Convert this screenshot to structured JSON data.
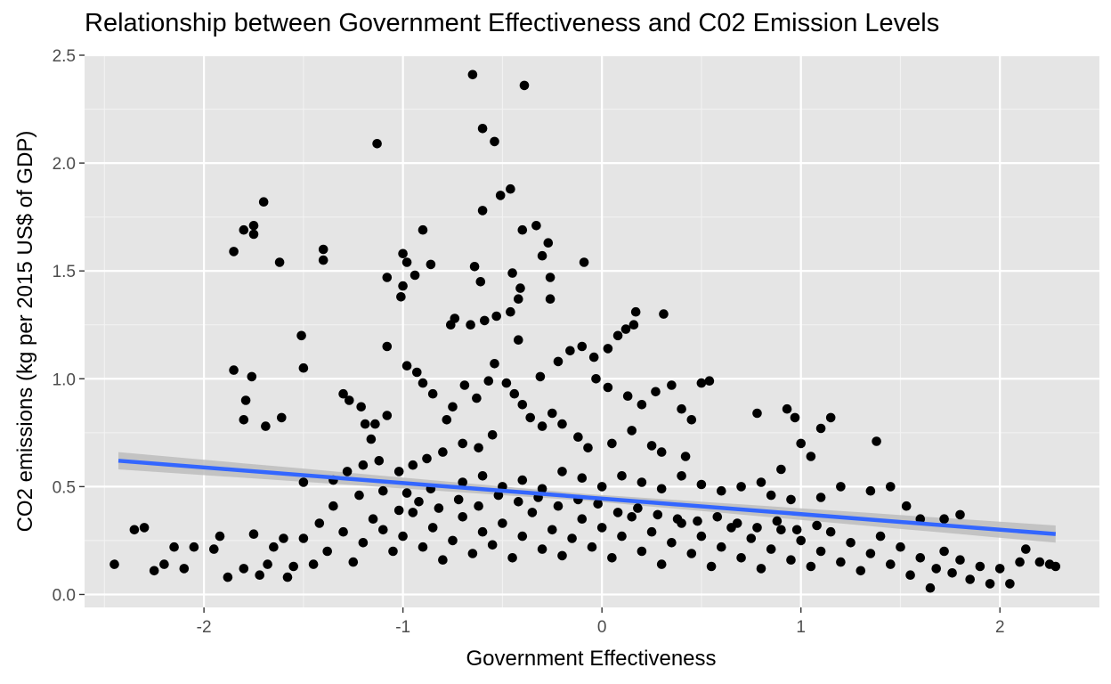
{
  "chart_data": {
    "type": "scatter",
    "title": "Relationship between Government Effectiveness and C02 Emission Levels",
    "xlabel": "Government Effectiveness",
    "ylabel": "CO2 emissions (kg per 2015 US$ of GDP)",
    "xlim": [
      -2.6,
      2.5
    ],
    "ylim": [
      -0.06,
      2.5
    ],
    "x_ticks": [
      -2,
      -1,
      0,
      1,
      2
    ],
    "x_tick_labels": [
      "-2",
      "-1",
      "0",
      "1",
      "2"
    ],
    "y_ticks": [
      0.0,
      0.5,
      1.0,
      1.5,
      2.0,
      2.5
    ],
    "y_tick_labels": [
      "0.0",
      "0.5",
      "1.0",
      "1.5",
      "2.0",
      "2.5"
    ],
    "grid": true,
    "panel_background": "#e5e5e5",
    "point_color": "#000000",
    "series": [
      {
        "points": [
          [
            -0.65,
            2.41
          ],
          [
            -0.39,
            2.36
          ],
          [
            -1.13,
            2.09
          ],
          [
            -0.6,
            2.16
          ],
          [
            -0.54,
            2.1
          ],
          [
            -0.46,
            1.88
          ],
          [
            -0.51,
            1.85
          ],
          [
            -0.6,
            1.78
          ],
          [
            -0.33,
            1.71
          ],
          [
            -0.4,
            1.69
          ],
          [
            -0.27,
            1.63
          ],
          [
            -0.3,
            1.57
          ],
          [
            -0.09,
            1.54
          ],
          [
            -0.26,
            1.47
          ],
          [
            -0.26,
            1.37
          ],
          [
            -0.45,
            1.49
          ],
          [
            -0.41,
            1.42
          ],
          [
            -0.64,
            1.52
          ],
          [
            -0.61,
            1.45
          ],
          [
            -0.42,
            1.37
          ],
          [
            -1.7,
            1.82
          ],
          [
            -1.75,
            1.71
          ],
          [
            -1.8,
            1.69
          ],
          [
            -1.75,
            1.67
          ],
          [
            -1.85,
            1.59
          ],
          [
            -1.62,
            1.54
          ],
          [
            -1.4,
            1.6
          ],
          [
            -1.4,
            1.55
          ],
          [
            -1.0,
            1.58
          ],
          [
            -0.98,
            1.54
          ],
          [
            -1.08,
            1.47
          ],
          [
            -0.9,
            1.69
          ],
          [
            -0.86,
            1.53
          ],
          [
            -0.94,
            1.48
          ],
          [
            -1.01,
            1.38
          ],
          [
            -1.0,
            1.43
          ],
          [
            -0.74,
            1.28
          ],
          [
            -0.76,
            1.25
          ],
          [
            -0.66,
            1.25
          ],
          [
            -0.59,
            1.27
          ],
          [
            -0.53,
            1.29
          ],
          [
            -0.46,
            1.31
          ],
          [
            -0.42,
            1.18
          ],
          [
            -1.51,
            1.2
          ],
          [
            -1.5,
            1.05
          ],
          [
            -1.08,
            1.15
          ],
          [
            -1.85,
            1.04
          ],
          [
            -1.76,
            1.01
          ],
          [
            -1.79,
            0.9
          ],
          [
            -1.8,
            0.81
          ],
          [
            -1.69,
            0.78
          ],
          [
            -1.61,
            0.82
          ],
          [
            -1.3,
            0.93
          ],
          [
            -1.27,
            0.9
          ],
          [
            -1.21,
            0.87
          ],
          [
            -1.19,
            0.79
          ],
          [
            -1.14,
            0.79
          ],
          [
            -1.08,
            0.83
          ],
          [
            -1.16,
            0.72
          ],
          [
            -1.12,
            0.62
          ],
          [
            -0.98,
            1.06
          ],
          [
            -0.93,
            1.03
          ],
          [
            -0.9,
            0.98
          ],
          [
            -0.85,
            0.93
          ],
          [
            -0.75,
            0.87
          ],
          [
            -0.78,
            0.81
          ],
          [
            -0.69,
            0.97
          ],
          [
            -0.63,
            0.91
          ],
          [
            -0.57,
            0.99
          ],
          [
            -0.54,
            1.07
          ],
          [
            -0.48,
            0.98
          ],
          [
            -0.44,
            0.93
          ],
          [
            -0.4,
            0.88
          ],
          [
            -0.36,
            0.82
          ],
          [
            -0.31,
            1.01
          ],
          [
            -0.22,
            1.08
          ],
          [
            -0.16,
            1.13
          ],
          [
            -0.1,
            1.15
          ],
          [
            -0.04,
            1.1
          ],
          [
            0.03,
            1.14
          ],
          [
            0.08,
            1.2
          ],
          [
            0.12,
            1.23
          ],
          [
            0.16,
            1.25
          ],
          [
            0.17,
            1.31
          ],
          [
            0.31,
            1.3
          ],
          [
            -0.03,
            1.0
          ],
          [
            0.03,
            0.96
          ],
          [
            0.13,
            0.92
          ],
          [
            0.2,
            0.88
          ],
          [
            0.27,
            0.94
          ],
          [
            0.35,
            0.97
          ],
          [
            0.4,
            0.86
          ],
          [
            0.45,
            0.81
          ],
          [
            0.5,
            0.98
          ],
          [
            0.54,
            0.99
          ],
          [
            0.78,
            0.84
          ],
          [
            0.93,
            0.86
          ],
          [
            0.97,
            0.82
          ],
          [
            1.1,
            0.77
          ],
          [
            1.15,
            0.82
          ],
          [
            1.38,
            0.71
          ],
          [
            1.0,
            0.7
          ],
          [
            1.05,
            0.64
          ],
          [
            0.9,
            0.58
          ],
          [
            0.8,
            0.52
          ],
          [
            -0.25,
            0.84
          ],
          [
            -0.3,
            0.78
          ],
          [
            -0.2,
            0.79
          ],
          [
            -0.12,
            0.73
          ],
          [
            -0.07,
            0.68
          ],
          [
            0.05,
            0.7
          ],
          [
            0.15,
            0.76
          ],
          [
            0.25,
            0.69
          ],
          [
            0.3,
            0.66
          ],
          [
            0.42,
            0.64
          ],
          [
            -0.55,
            0.74
          ],
          [
            -0.62,
            0.68
          ],
          [
            -0.7,
            0.7
          ],
          [
            -0.8,
            0.66
          ],
          [
            -0.88,
            0.63
          ],
          [
            -0.95,
            0.6
          ],
          [
            -1.02,
            0.57
          ],
          [
            -1.2,
            0.6
          ],
          [
            -1.28,
            0.57
          ],
          [
            -1.35,
            0.53
          ],
          [
            -1.5,
            0.52
          ],
          [
            -1.22,
            0.46
          ],
          [
            -1.1,
            0.48
          ],
          [
            -0.98,
            0.47
          ],
          [
            -0.86,
            0.49
          ],
          [
            -0.7,
            0.52
          ],
          [
            -0.6,
            0.55
          ],
          [
            -0.5,
            0.5
          ],
          [
            -0.4,
            0.53
          ],
          [
            -0.3,
            0.49
          ],
          [
            -0.2,
            0.57
          ],
          [
            -0.1,
            0.54
          ],
          [
            0.0,
            0.5
          ],
          [
            0.1,
            0.55
          ],
          [
            0.2,
            0.52
          ],
          [
            0.3,
            0.49
          ],
          [
            0.4,
            0.55
          ],
          [
            0.5,
            0.51
          ],
          [
            0.6,
            0.48
          ],
          [
            0.7,
            0.5
          ],
          [
            0.85,
            0.46
          ],
          [
            0.95,
            0.44
          ],
          [
            1.1,
            0.45
          ],
          [
            1.2,
            0.5
          ],
          [
            1.35,
            0.48
          ],
          [
            1.45,
            0.5
          ],
          [
            1.53,
            0.41
          ],
          [
            1.6,
            0.35
          ],
          [
            1.72,
            0.35
          ],
          [
            1.8,
            0.37
          ],
          [
            -2.45,
            0.14
          ],
          [
            -2.35,
            0.3
          ],
          [
            -2.3,
            0.31
          ],
          [
            -2.25,
            0.11
          ],
          [
            -2.2,
            0.14
          ],
          [
            -2.15,
            0.22
          ],
          [
            -2.1,
            0.12
          ],
          [
            -2.05,
            0.22
          ],
          [
            -1.95,
            0.21
          ],
          [
            -1.92,
            0.27
          ],
          [
            -1.88,
            0.08
          ],
          [
            -1.8,
            0.12
          ],
          [
            -1.75,
            0.28
          ],
          [
            -1.72,
            0.09
          ],
          [
            -1.68,
            0.14
          ],
          [
            -1.65,
            0.22
          ],
          [
            -1.6,
            0.26
          ],
          [
            -1.58,
            0.08
          ],
          [
            -1.55,
            0.13
          ],
          [
            -1.5,
            0.26
          ],
          [
            -1.45,
            0.14
          ],
          [
            -1.42,
            0.33
          ],
          [
            -1.38,
            0.2
          ],
          [
            -1.35,
            0.41
          ],
          [
            -1.3,
            0.29
          ],
          [
            -1.25,
            0.15
          ],
          [
            -1.2,
            0.24
          ],
          [
            -1.15,
            0.35
          ],
          [
            -1.1,
            0.3
          ],
          [
            -1.05,
            0.2
          ],
          [
            -1.0,
            0.27
          ],
          [
            -0.95,
            0.38
          ],
          [
            -0.9,
            0.22
          ],
          [
            -0.85,
            0.31
          ],
          [
            -0.8,
            0.16
          ],
          [
            -0.75,
            0.25
          ],
          [
            -0.7,
            0.36
          ],
          [
            -0.65,
            0.19
          ],
          [
            -0.6,
            0.29
          ],
          [
            -0.55,
            0.23
          ],
          [
            -0.5,
            0.33
          ],
          [
            -0.45,
            0.17
          ],
          [
            -0.4,
            0.27
          ],
          [
            -0.35,
            0.38
          ],
          [
            -0.3,
            0.21
          ],
          [
            -0.25,
            0.3
          ],
          [
            -0.2,
            0.18
          ],
          [
            -0.15,
            0.26
          ],
          [
            -0.1,
            0.35
          ],
          [
            -0.05,
            0.22
          ],
          [
            0.0,
            0.31
          ],
          [
            0.05,
            0.17
          ],
          [
            0.1,
            0.27
          ],
          [
            0.15,
            0.36
          ],
          [
            0.2,
            0.2
          ],
          [
            0.25,
            0.29
          ],
          [
            0.3,
            0.14
          ],
          [
            0.35,
            0.24
          ],
          [
            0.4,
            0.33
          ],
          [
            0.45,
            0.19
          ],
          [
            0.5,
            0.27
          ],
          [
            0.55,
            0.13
          ],
          [
            0.6,
            0.22
          ],
          [
            0.65,
            0.31
          ],
          [
            0.7,
            0.17
          ],
          [
            0.75,
            0.26
          ],
          [
            0.8,
            0.12
          ],
          [
            0.85,
            0.21
          ],
          [
            0.9,
            0.3
          ],
          [
            0.95,
            0.16
          ],
          [
            1.0,
            0.25
          ],
          [
            1.05,
            0.13
          ],
          [
            1.1,
            0.2
          ],
          [
            1.15,
            0.29
          ],
          [
            1.2,
            0.15
          ],
          [
            1.25,
            0.24
          ],
          [
            1.3,
            0.11
          ],
          [
            1.35,
            0.19
          ],
          [
            1.4,
            0.27
          ],
          [
            1.45,
            0.14
          ],
          [
            1.5,
            0.22
          ],
          [
            1.55,
            0.09
          ],
          [
            1.6,
            0.17
          ],
          [
            1.65,
            0.03
          ],
          [
            1.68,
            0.12
          ],
          [
            1.72,
            0.2
          ],
          [
            1.76,
            0.1
          ],
          [
            1.8,
            0.16
          ],
          [
            1.85,
            0.07
          ],
          [
            1.9,
            0.13
          ],
          [
            1.95,
            0.05
          ],
          [
            2.0,
            0.12
          ],
          [
            2.05,
            0.05
          ],
          [
            2.1,
            0.15
          ],
          [
            2.13,
            0.21
          ],
          [
            2.2,
            0.15
          ],
          [
            2.25,
            0.14
          ],
          [
            2.28,
            0.13
          ],
          [
            -0.02,
            0.42
          ],
          [
            0.08,
            0.38
          ],
          [
            -0.12,
            0.44
          ],
          [
            0.18,
            0.4
          ],
          [
            -0.22,
            0.41
          ],
          [
            0.28,
            0.37
          ],
          [
            -0.32,
            0.45
          ],
          [
            0.38,
            0.35
          ],
          [
            -0.42,
            0.43
          ],
          [
            0.48,
            0.34
          ],
          [
            -0.52,
            0.46
          ],
          [
            0.58,
            0.36
          ],
          [
            -0.62,
            0.41
          ],
          [
            0.68,
            0.33
          ],
          [
            -0.72,
            0.44
          ],
          [
            0.78,
            0.31
          ],
          [
            -0.82,
            0.4
          ],
          [
            0.88,
            0.34
          ],
          [
            -0.92,
            0.43
          ],
          [
            0.98,
            0.3
          ],
          [
            -1.02,
            0.39
          ],
          [
            1.08,
            0.32
          ]
        ]
      }
    ],
    "trend_line": {
      "method": "lm",
      "color": "#3366ff",
      "ci_fill": "#bdbdbd",
      "x": [
        -2.43,
        2.28
      ],
      "y": [
        0.62,
        0.28
      ],
      "ci_halfwidth": [
        0.04,
        0.035
      ]
    }
  }
}
